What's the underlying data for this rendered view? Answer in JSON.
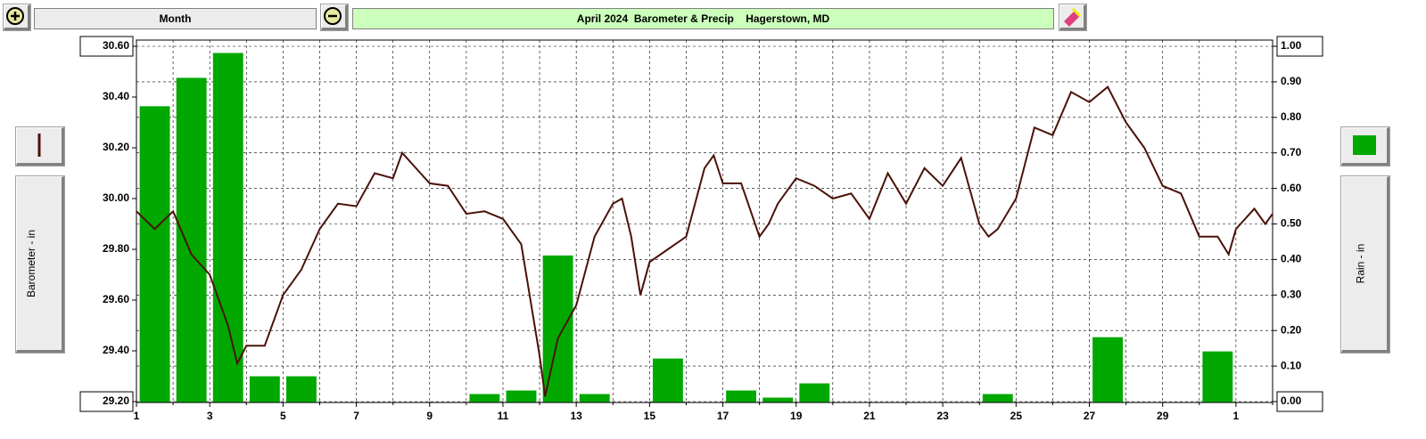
{
  "toolbar": {
    "period": "Month"
  },
  "chart_data": {
    "type": "combo",
    "title": "April 2024  Barometer & Precip    Hagerstown, MD",
    "y_label": "Barometer - in",
    "y2_label": "Rain - in",
    "xlim": [
      1,
      32
    ],
    "ylim": [
      29.2,
      30.6
    ],
    "y2lim": [
      0,
      1
    ],
    "grid": true,
    "xticks": [
      1,
      3,
      5,
      7,
      9,
      11,
      13,
      15,
      17,
      19,
      21,
      23,
      25,
      27,
      29,
      {
        "value": 31,
        "label": "1"
      }
    ],
    "x_minor_ticks": [
      2,
      4,
      6,
      8,
      10,
      12,
      14,
      16,
      18,
      20,
      22,
      24,
      26,
      28,
      30,
      32
    ],
    "yticks": [
      {
        "value": 30.6,
        "label": "30.60"
      },
      {
        "value": 30.4,
        "label": "30.40"
      },
      {
        "value": 30.2,
        "label": "30.20"
      },
      {
        "value": 30,
        "label": "30.00"
      },
      {
        "value": 29.8,
        "label": "29.80"
      },
      {
        "value": 29.6,
        "label": "29.60"
      },
      {
        "value": 29.4,
        "label": "29.40"
      },
      {
        "value": 29.2,
        "label": "29.20"
      }
    ],
    "y2ticks": [
      {
        "value": 1,
        "label": "1.00"
      },
      {
        "value": 0.9,
        "label": "0.90"
      },
      {
        "value": 0.8,
        "label": "0.80"
      },
      {
        "value": 0.7,
        "label": "0.70"
      },
      {
        "value": 0.6,
        "label": "0.60"
      },
      {
        "value": 0.5,
        "label": "0.50"
      },
      {
        "value": 0.4,
        "label": "0.40"
      },
      {
        "value": 0.3,
        "label": "0.30"
      },
      {
        "value": 0.2,
        "label": "0.20"
      },
      {
        "value": 0.1,
        "label": "0.10"
      },
      {
        "value": 0,
        "label": "0.00"
      }
    ],
    "series": [
      {
        "type": "bar",
        "axis": "y2",
        "color": "#00a800",
        "x": [
          1,
          2,
          3,
          4,
          5,
          6,
          7,
          8,
          9,
          10,
          11,
          12,
          13,
          14,
          15,
          16,
          17,
          18,
          19,
          20,
          21,
          22,
          23,
          24,
          25,
          26,
          27,
          28,
          29,
          30,
          31
        ],
        "values": [
          0.83,
          0.91,
          0.98,
          0.07,
          0.07,
          0,
          0,
          0,
          0,
          0.02,
          0.03,
          0.41,
          0.02,
          0,
          0.12,
          0,
          0.03,
          0.01,
          0.05,
          0,
          0,
          0,
          0,
          0.02,
          0,
          0,
          0.18,
          0,
          0,
          0.14,
          0
        ]
      },
      {
        "type": "line",
        "color": "#4a1208",
        "x": [
          1,
          1.5,
          2,
          2.5,
          3,
          3.5,
          3.75,
          4,
          4.5,
          5,
          5.5,
          6,
          6.5,
          7,
          7.5,
          8,
          8.25,
          8.75,
          9,
          9.5,
          10,
          10.5,
          11,
          11.5,
          12,
          12.15,
          12.5,
          13,
          13.5,
          14,
          14.25,
          14.5,
          14.75,
          15,
          15.5,
          16,
          16.5,
          16.75,
          17,
          17.5,
          18,
          18.25,
          18.5,
          19,
          19.5,
          20,
          20.5,
          21,
          21.5,
          22,
          22.5,
          23,
          23.5,
          24,
          24.25,
          24.5,
          25,
          25.5,
          26,
          26.5,
          27,
          27.5,
          28,
          28.5,
          29,
          29.5,
          30,
          30.5,
          30.8,
          31,
          31.5,
          31.8,
          32
        ],
        "values": [
          29.95,
          29.88,
          29.95,
          29.78,
          29.7,
          29.5,
          29.35,
          29.42,
          29.42,
          29.62,
          29.72,
          29.88,
          29.98,
          29.97,
          30.1,
          30.08,
          30.18,
          30.1,
          30.06,
          30.05,
          29.94,
          29.95,
          29.92,
          29.82,
          29.38,
          29.22,
          29.45,
          29.58,
          29.85,
          29.98,
          30,
          29.85,
          29.62,
          29.75,
          29.8,
          29.85,
          30.12,
          30.17,
          30.06,
          30.06,
          29.85,
          29.9,
          29.98,
          30.08,
          30.05,
          30,
          30.02,
          29.92,
          30.1,
          29.98,
          30.12,
          30.05,
          30.16,
          29.9,
          29.85,
          29.88,
          30,
          30.28,
          30.25,
          30.42,
          30.38,
          30.44,
          30.3,
          30.2,
          30.05,
          30.02,
          29.85,
          29.85,
          29.78,
          29.88,
          29.96,
          29.9,
          29.94
        ]
      }
    ]
  }
}
